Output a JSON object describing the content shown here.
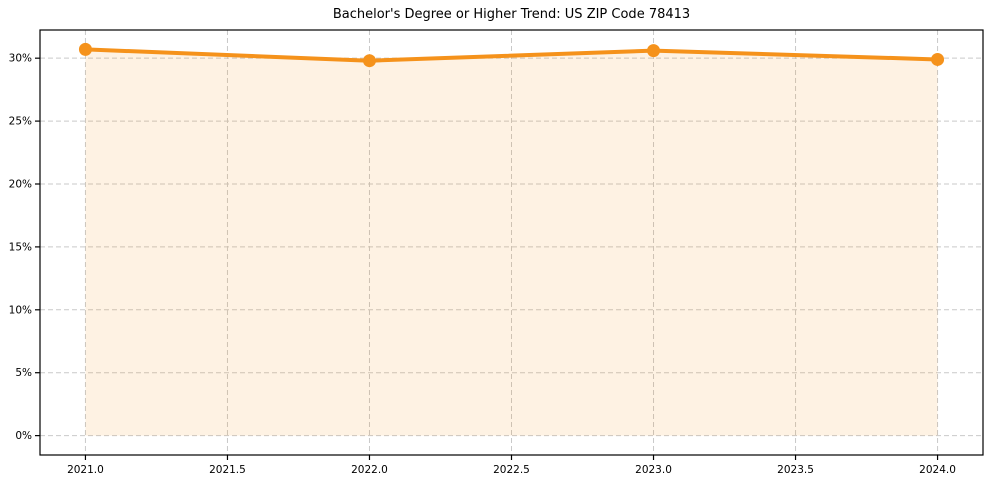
{
  "figure": {
    "title": "Bachelor's Degree or Higher Trend: US ZIP Code 78413"
  },
  "chart_data": {
    "type": "line",
    "title": "Bachelor's Degree or Higher Trend: US ZIP Code 78413",
    "xlabel": "",
    "ylabel": "",
    "x": [
      2021,
      2022,
      2023,
      2024
    ],
    "values": [
      30.7,
      29.8,
      30.6,
      29.9
    ],
    "unit": "%",
    "x_tick_values": [
      2021.0,
      2021.5,
      2022.0,
      2022.5,
      2023.0,
      2023.5,
      2024.0
    ],
    "x_tick_labels": [
      "2021.0",
      "2021.5",
      "2022.0",
      "2022.5",
      "2023.0",
      "2023.5",
      "2024.0"
    ],
    "y_tick_values": [
      0,
      5,
      10,
      15,
      20,
      25,
      30
    ],
    "y_tick_labels": [
      "0%",
      "5%",
      "10%",
      "15%",
      "20%",
      "25%",
      "30%"
    ],
    "xlim": [
      2020.84,
      2024.16
    ],
    "ylim": [
      -1.54,
      32.24
    ],
    "grid": true,
    "grid_style": "dashed",
    "legend": false,
    "marker": "circle",
    "area_fill": true,
    "fill_baseline": 0,
    "fill_opacity": 0.12,
    "line_width": 4,
    "marker_radius": 6.5,
    "colors": {
      "line": "#F5921B",
      "fill": "#F5921B",
      "grid": "#C9C9C9",
      "axis": "#000000",
      "text": "#000000",
      "background": "#FFFFFF"
    }
  }
}
